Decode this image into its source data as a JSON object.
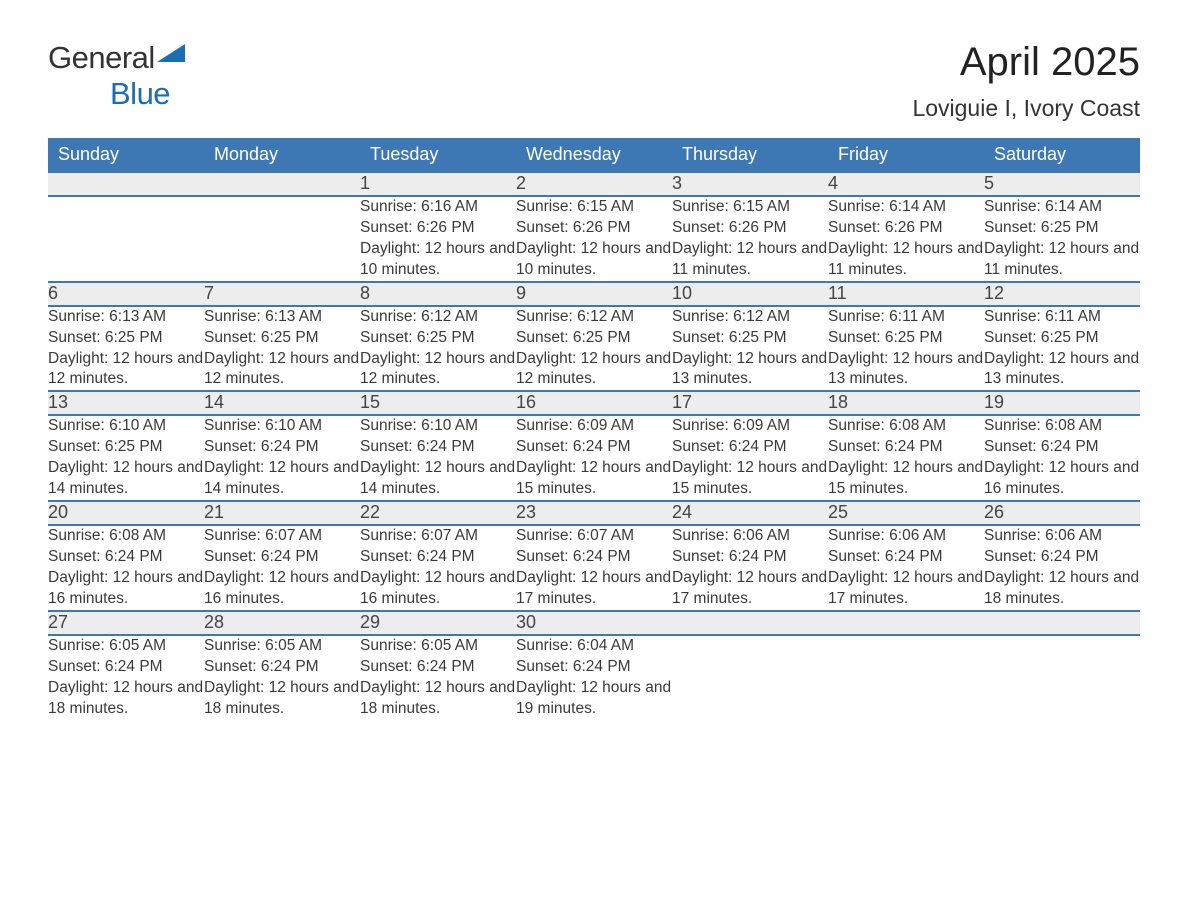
{
  "logo": {
    "text1": "General",
    "text2": "Blue"
  },
  "title": "April 2025",
  "location": "Loviguie I, Ivory Coast",
  "colors": {
    "header_bg": "#3d78b4",
    "logo_blue": "#1a6fb3",
    "daynum_bg": "#ededed",
    "text": "#333333",
    "body_text": "#3a3a3a"
  },
  "weekday_headers": [
    "Sunday",
    "Monday",
    "Tuesday",
    "Wednesday",
    "Thursday",
    "Friday",
    "Saturday"
  ],
  "weeks": [
    [
      null,
      null,
      {
        "day": "1",
        "sunrise": "Sunrise: 6:16 AM",
        "sunset": "Sunset: 6:26 PM",
        "daylight": "Daylight: 12 hours and 10 minutes."
      },
      {
        "day": "2",
        "sunrise": "Sunrise: 6:15 AM",
        "sunset": "Sunset: 6:26 PM",
        "daylight": "Daylight: 12 hours and 10 minutes."
      },
      {
        "day": "3",
        "sunrise": "Sunrise: 6:15 AM",
        "sunset": "Sunset: 6:26 PM",
        "daylight": "Daylight: 12 hours and 11 minutes."
      },
      {
        "day": "4",
        "sunrise": "Sunrise: 6:14 AM",
        "sunset": "Sunset: 6:26 PM",
        "daylight": "Daylight: 12 hours and 11 minutes."
      },
      {
        "day": "5",
        "sunrise": "Sunrise: 6:14 AM",
        "sunset": "Sunset: 6:25 PM",
        "daylight": "Daylight: 12 hours and 11 minutes."
      }
    ],
    [
      {
        "day": "6",
        "sunrise": "Sunrise: 6:13 AM",
        "sunset": "Sunset: 6:25 PM",
        "daylight": "Daylight: 12 hours and 12 minutes."
      },
      {
        "day": "7",
        "sunrise": "Sunrise: 6:13 AM",
        "sunset": "Sunset: 6:25 PM",
        "daylight": "Daylight: 12 hours and 12 minutes."
      },
      {
        "day": "8",
        "sunrise": "Sunrise: 6:12 AM",
        "sunset": "Sunset: 6:25 PM",
        "daylight": "Daylight: 12 hours and 12 minutes."
      },
      {
        "day": "9",
        "sunrise": "Sunrise: 6:12 AM",
        "sunset": "Sunset: 6:25 PM",
        "daylight": "Daylight: 12 hours and 12 minutes."
      },
      {
        "day": "10",
        "sunrise": "Sunrise: 6:12 AM",
        "sunset": "Sunset: 6:25 PM",
        "daylight": "Daylight: 12 hours and 13 minutes."
      },
      {
        "day": "11",
        "sunrise": "Sunrise: 6:11 AM",
        "sunset": "Sunset: 6:25 PM",
        "daylight": "Daylight: 12 hours and 13 minutes."
      },
      {
        "day": "12",
        "sunrise": "Sunrise: 6:11 AM",
        "sunset": "Sunset: 6:25 PM",
        "daylight": "Daylight: 12 hours and 13 minutes."
      }
    ],
    [
      {
        "day": "13",
        "sunrise": "Sunrise: 6:10 AM",
        "sunset": "Sunset: 6:25 PM",
        "daylight": "Daylight: 12 hours and 14 minutes."
      },
      {
        "day": "14",
        "sunrise": "Sunrise: 6:10 AM",
        "sunset": "Sunset: 6:24 PM",
        "daylight": "Daylight: 12 hours and 14 minutes."
      },
      {
        "day": "15",
        "sunrise": "Sunrise: 6:10 AM",
        "sunset": "Sunset: 6:24 PM",
        "daylight": "Daylight: 12 hours and 14 minutes."
      },
      {
        "day": "16",
        "sunrise": "Sunrise: 6:09 AM",
        "sunset": "Sunset: 6:24 PM",
        "daylight": "Daylight: 12 hours and 15 minutes."
      },
      {
        "day": "17",
        "sunrise": "Sunrise: 6:09 AM",
        "sunset": "Sunset: 6:24 PM",
        "daylight": "Daylight: 12 hours and 15 minutes."
      },
      {
        "day": "18",
        "sunrise": "Sunrise: 6:08 AM",
        "sunset": "Sunset: 6:24 PM",
        "daylight": "Daylight: 12 hours and 15 minutes."
      },
      {
        "day": "19",
        "sunrise": "Sunrise: 6:08 AM",
        "sunset": "Sunset: 6:24 PM",
        "daylight": "Daylight: 12 hours and 16 minutes."
      }
    ],
    [
      {
        "day": "20",
        "sunrise": "Sunrise: 6:08 AM",
        "sunset": "Sunset: 6:24 PM",
        "daylight": "Daylight: 12 hours and 16 minutes."
      },
      {
        "day": "21",
        "sunrise": "Sunrise: 6:07 AM",
        "sunset": "Sunset: 6:24 PM",
        "daylight": "Daylight: 12 hours and 16 minutes."
      },
      {
        "day": "22",
        "sunrise": "Sunrise: 6:07 AM",
        "sunset": "Sunset: 6:24 PM",
        "daylight": "Daylight: 12 hours and 16 minutes."
      },
      {
        "day": "23",
        "sunrise": "Sunrise: 6:07 AM",
        "sunset": "Sunset: 6:24 PM",
        "daylight": "Daylight: 12 hours and 17 minutes."
      },
      {
        "day": "24",
        "sunrise": "Sunrise: 6:06 AM",
        "sunset": "Sunset: 6:24 PM",
        "daylight": "Daylight: 12 hours and 17 minutes."
      },
      {
        "day": "25",
        "sunrise": "Sunrise: 6:06 AM",
        "sunset": "Sunset: 6:24 PM",
        "daylight": "Daylight: 12 hours and 17 minutes."
      },
      {
        "day": "26",
        "sunrise": "Sunrise: 6:06 AM",
        "sunset": "Sunset: 6:24 PM",
        "daylight": "Daylight: 12 hours and 18 minutes."
      }
    ],
    [
      {
        "day": "27",
        "sunrise": "Sunrise: 6:05 AM",
        "sunset": "Sunset: 6:24 PM",
        "daylight": "Daylight: 12 hours and 18 minutes."
      },
      {
        "day": "28",
        "sunrise": "Sunrise: 6:05 AM",
        "sunset": "Sunset: 6:24 PM",
        "daylight": "Daylight: 12 hours and 18 minutes."
      },
      {
        "day": "29",
        "sunrise": "Sunrise: 6:05 AM",
        "sunset": "Sunset: 6:24 PM",
        "daylight": "Daylight: 12 hours and 18 minutes."
      },
      {
        "day": "30",
        "sunrise": "Sunrise: 6:04 AM",
        "sunset": "Sunset: 6:24 PM",
        "daylight": "Daylight: 12 hours and 19 minutes."
      },
      null,
      null,
      null
    ]
  ]
}
